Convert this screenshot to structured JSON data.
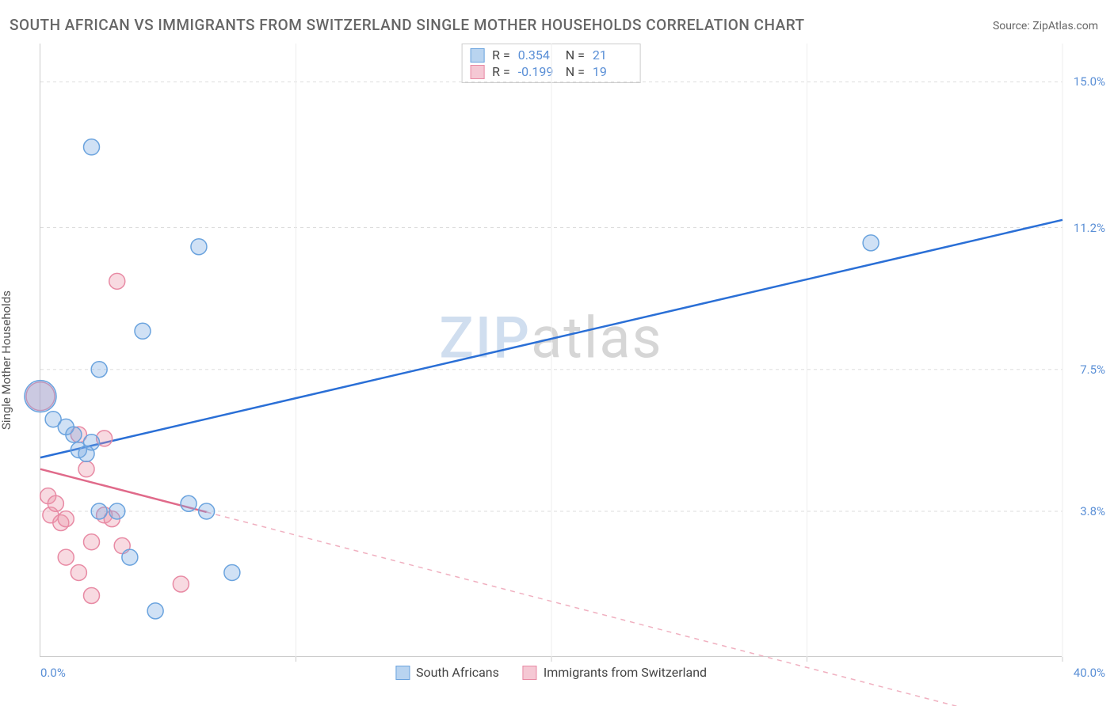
{
  "title": "SOUTH AFRICAN VS IMMIGRANTS FROM SWITZERLAND SINGLE MOTHER HOUSEHOLDS CORRELATION CHART",
  "source": "Source: ZipAtlas.com",
  "y_axis_label": "Single Mother Households",
  "watermark_zip": "ZIP",
  "watermark_atlas": "atlas",
  "chart": {
    "type": "scatter",
    "background_color": "#ffffff",
    "grid_color": "#dddddd",
    "axis_color": "#cccccc",
    "xlim": [
      0,
      40
    ],
    "ylim": [
      0,
      16
    ],
    "x_ticks": [
      0,
      10,
      20,
      30,
      40
    ],
    "x_tick_labels": {
      "min": "0.0%",
      "max": "40.0%"
    },
    "y_ticks": [
      3.8,
      7.5,
      11.2,
      15.0
    ],
    "y_tick_labels": [
      "3.8%",
      "7.5%",
      "11.2%",
      "15.0%"
    ],
    "y_label_color": "#5a8fd6",
    "marker_radius": 10,
    "marker_stroke_width": 1.5,
    "series": [
      {
        "name": "South Africans",
        "color_fill": "rgba(120,170,225,0.35)",
        "color_stroke": "#6aa3de",
        "swatch_fill": "#b9d4f0",
        "swatch_border": "#6aa3de",
        "r": "0.354",
        "n": "21",
        "trend": {
          "x1": 0,
          "y1": 5.2,
          "x2": 40,
          "y2": 11.4,
          "solid_until_x": 40,
          "stroke": "#2a6fd6",
          "stroke_width": 2.5
        },
        "points": [
          {
            "x": 0.0,
            "y": 6.8,
            "r": 20
          },
          {
            "x": 0.5,
            "y": 6.2
          },
          {
            "x": 1.0,
            "y": 6.0
          },
          {
            "x": 1.3,
            "y": 5.8
          },
          {
            "x": 1.5,
            "y": 5.4
          },
          {
            "x": 1.8,
            "y": 5.3
          },
          {
            "x": 2.0,
            "y": 13.3
          },
          {
            "x": 2.0,
            "y": 5.6
          },
          {
            "x": 2.3,
            "y": 3.8
          },
          {
            "x": 2.3,
            "y": 7.5
          },
          {
            "x": 3.0,
            "y": 3.8
          },
          {
            "x": 3.5,
            "y": 2.6
          },
          {
            "x": 4.0,
            "y": 8.5
          },
          {
            "x": 4.5,
            "y": 1.2
          },
          {
            "x": 5.8,
            "y": 4.0
          },
          {
            "x": 6.2,
            "y": 10.7
          },
          {
            "x": 6.5,
            "y": 3.8
          },
          {
            "x": 7.5,
            "y": 2.2
          },
          {
            "x": 32.5,
            "y": 10.8
          }
        ]
      },
      {
        "name": "Immigrants from Switzerland",
        "color_fill": "rgba(235,150,170,0.35)",
        "color_stroke": "#e88aa4",
        "swatch_fill": "#f5c8d4",
        "swatch_border": "#e88aa4",
        "r": "-0.199",
        "n": "19",
        "trend": {
          "x1": 0,
          "y1": 4.9,
          "x2": 40,
          "y2": -2.0,
          "solid_until_x": 6.5,
          "stroke": "#e06a8a",
          "stroke_dash": "#f0b0c0",
          "stroke_width": 2.5
        },
        "points": [
          {
            "x": 0.0,
            "y": 6.8,
            "r": 18
          },
          {
            "x": 0.3,
            "y": 4.2
          },
          {
            "x": 0.4,
            "y": 3.7
          },
          {
            "x": 0.6,
            "y": 4.0
          },
          {
            "x": 0.8,
            "y": 3.5
          },
          {
            "x": 1.0,
            "y": 3.6
          },
          {
            "x": 1.0,
            "y": 2.6
          },
          {
            "x": 1.5,
            "y": 2.2
          },
          {
            "x": 1.5,
            "y": 5.8
          },
          {
            "x": 1.8,
            "y": 4.9
          },
          {
            "x": 2.0,
            "y": 3.0
          },
          {
            "x": 2.0,
            "y": 1.6
          },
          {
            "x": 2.5,
            "y": 3.7
          },
          {
            "x": 2.5,
            "y": 5.7
          },
          {
            "x": 2.8,
            "y": 3.6
          },
          {
            "x": 3.0,
            "y": 9.8
          },
          {
            "x": 3.2,
            "y": 2.9
          },
          {
            "x": 5.5,
            "y": 1.9
          }
        ]
      }
    ],
    "legend_bottom": [
      {
        "label": "South Africans",
        "swatch_fill": "#b9d4f0",
        "swatch_border": "#6aa3de"
      },
      {
        "label": "Immigrants from Switzerland",
        "swatch_fill": "#f5c8d4",
        "swatch_border": "#e88aa4"
      }
    ]
  }
}
